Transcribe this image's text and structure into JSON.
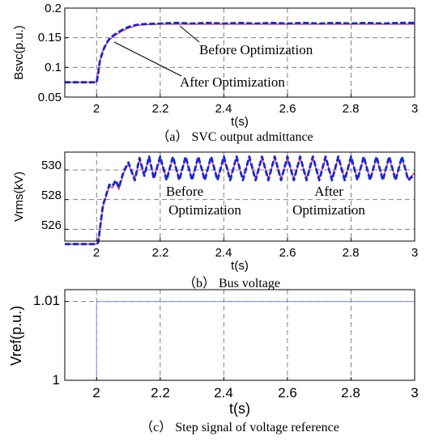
{
  "colors": {
    "before": "#1428d8",
    "after": "#e0206a",
    "grid": "#808080",
    "step": "#7f8cff"
  },
  "chart_data": [
    {
      "type": "line",
      "xlabel": "t(s)",
      "ylabel": "Bsvc(p.u.)",
      "xlim": [
        1.9,
        3.0
      ],
      "ylim": [
        0.05,
        0.2
      ],
      "x_ticks": [
        "2",
        "2.2",
        "2.4",
        "2.6",
        "2.8",
        "3"
      ],
      "y_ticks": [
        "0.05",
        "0.1",
        "0.15",
        "0.2"
      ],
      "grid": true,
      "caption": "（a） SVC output admittance",
      "annotations": [
        "Before Optimization",
        "After Optimization"
      ],
      "series": [
        {
          "name": "Before Optimization",
          "x": [
            1.9,
            2.0,
            2.005,
            2.01,
            2.02,
            2.03,
            2.04,
            2.05,
            2.07,
            2.09,
            2.11,
            2.13,
            2.15,
            2.2,
            2.25,
            2.3,
            2.35,
            2.4,
            2.45,
            2.5,
            2.55,
            2.6,
            2.65,
            2.7,
            2.75,
            2.8,
            2.85,
            2.9,
            2.95,
            3.0
          ],
          "values": [
            0.075,
            0.075,
            0.09,
            0.11,
            0.128,
            0.14,
            0.148,
            0.153,
            0.16,
            0.166,
            0.17,
            0.172,
            0.173,
            0.174,
            0.175,
            0.174,
            0.175,
            0.174,
            0.175,
            0.174,
            0.175,
            0.174,
            0.175,
            0.174,
            0.175,
            0.174,
            0.175,
            0.174,
            0.175,
            0.175
          ]
        },
        {
          "name": "After Optimization",
          "x": [
            1.9,
            2.0,
            2.005,
            2.01,
            2.02,
            2.03,
            2.04,
            2.05,
            2.07,
            2.09,
            2.11,
            2.13,
            2.15,
            2.2,
            2.3,
            2.4,
            2.5,
            2.6,
            2.7,
            2.8,
            2.9,
            3.0
          ],
          "values": [
            0.075,
            0.075,
            0.09,
            0.11,
            0.128,
            0.139,
            0.146,
            0.151,
            0.158,
            0.164,
            0.168,
            0.171,
            0.172,
            0.173,
            0.173,
            0.173,
            0.173,
            0.173,
            0.173,
            0.173,
            0.173,
            0.173
          ]
        }
      ]
    },
    {
      "type": "line",
      "xlabel": "t(s)",
      "ylabel": "Vrms(kV)",
      "xlim": [
        1.9,
        3.0
      ],
      "ylim": [
        525.2,
        531.2
      ],
      "x_ticks": [
        "2",
        "2.2",
        "2.4",
        "2.6",
        "2.8",
        "3"
      ],
      "y_ticks": [
        "526",
        "528",
        "530"
      ],
      "grid": true,
      "caption": "（b） Bus voltage",
      "annotations": [
        "Before Optimization",
        "After Optimization"
      ],
      "series": [
        {
          "name": "Before Optimization",
          "x": [
            1.9,
            2.0,
            2.005,
            2.02,
            2.04,
            2.05,
            2.06,
            2.07,
            2.085,
            2.1,
            2.12,
            2.135,
            2.15,
            2.165,
            2.18,
            2.2,
            2.22,
            2.24,
            2.26,
            2.28,
            2.3,
            2.32,
            2.34,
            2.36,
            2.38,
            2.4,
            2.42,
            2.44,
            2.46,
            2.48,
            2.5,
            2.52,
            2.54,
            2.56,
            2.58,
            2.6,
            2.62,
            2.64,
            2.66,
            2.68,
            2.7,
            2.72,
            2.74,
            2.76,
            2.78,
            2.8,
            2.82,
            2.84,
            2.86,
            2.88,
            2.9,
            2.92,
            2.94,
            2.96,
            2.98,
            3.0
          ],
          "values": [
            525.0,
            525.0,
            525.1,
            527.6,
            529.0,
            528.9,
            529.3,
            528.8,
            529.9,
            530.5,
            529.3,
            530.8,
            529.6,
            530.9,
            529.4,
            530.9,
            529.3,
            530.9,
            529.3,
            530.9,
            529.3,
            530.9,
            529.3,
            530.9,
            529.3,
            530.9,
            529.3,
            530.9,
            529.3,
            530.9,
            529.3,
            530.9,
            529.3,
            530.9,
            529.3,
            530.9,
            529.3,
            530.9,
            529.3,
            530.9,
            529.3,
            530.9,
            529.3,
            530.9,
            529.3,
            530.9,
            529.3,
            530.9,
            529.3,
            530.9,
            529.3,
            530.9,
            529.3,
            530.9,
            529.3,
            529.7
          ]
        },
        {
          "name": "After Optimization",
          "x": [
            1.9,
            2.0,
            2.005,
            2.02,
            2.04,
            2.05,
            2.06,
            2.07,
            2.085,
            2.1,
            2.12,
            2.135,
            2.15,
            2.165,
            2.18,
            2.2,
            2.22,
            2.24,
            2.26,
            2.28,
            2.3,
            2.32,
            2.34,
            2.36,
            2.38,
            2.4,
            2.42,
            2.44,
            2.46,
            2.48,
            2.5,
            2.52,
            2.54,
            2.56,
            2.58,
            2.6,
            2.62,
            2.64,
            2.66,
            2.68,
            2.7,
            2.72,
            2.74,
            2.76,
            2.78,
            2.8,
            2.82,
            2.84,
            2.86,
            2.88,
            2.9,
            2.92,
            2.94,
            2.96,
            2.98,
            3.0
          ],
          "values": [
            525.0,
            525.0,
            525.1,
            527.5,
            528.9,
            528.8,
            529.2,
            528.7,
            529.8,
            530.4,
            529.4,
            530.7,
            529.7,
            530.8,
            529.5,
            530.8,
            529.4,
            530.8,
            529.4,
            530.8,
            529.4,
            530.8,
            529.4,
            530.8,
            529.4,
            530.8,
            529.4,
            530.8,
            529.4,
            530.8,
            529.4,
            530.8,
            529.4,
            530.8,
            529.4,
            530.8,
            529.4,
            530.8,
            529.4,
            530.8,
            529.4,
            530.8,
            529.4,
            530.8,
            529.4,
            530.8,
            529.4,
            530.8,
            529.4,
            530.8,
            529.4,
            530.8,
            529.4,
            530.8,
            529.4,
            529.8
          ]
        }
      ]
    },
    {
      "type": "line",
      "xlabel": "t(s)",
      "ylabel": "Vref(p.u.)",
      "xlim": [
        1.9,
        3.0
      ],
      "ylim": [
        1.0,
        1.0115
      ],
      "x_ticks": [
        "2",
        "2.2",
        "2.4",
        "2.6",
        "2.8",
        "3"
      ],
      "y_ticks": [
        "1",
        "1.01"
      ],
      "grid": true,
      "caption": "（c） Step signal of voltage reference",
      "series": [
        {
          "x": [
            1.9,
            2.0,
            2.0,
            3.0
          ],
          "values": [
            1.0,
            1.0,
            1.01,
            1.01
          ]
        }
      ]
    }
  ]
}
